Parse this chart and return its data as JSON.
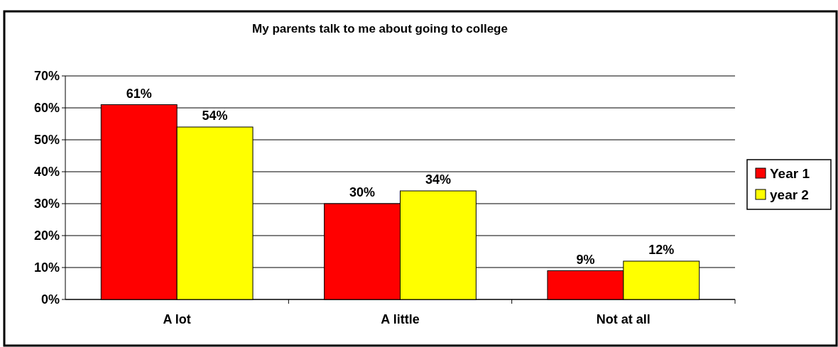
{
  "chart_data": {
    "type": "bar",
    "title": "My parents talk to me about going to college",
    "categories": [
      "A lot",
      "A little",
      "Not at all"
    ],
    "series": [
      {
        "name": "Year 1",
        "color": "#ff0000",
        "values": [
          61,
          30,
          9
        ],
        "value_labels": [
          "61%",
          "30%",
          "9%"
        ]
      },
      {
        "name": "year 2",
        "color": "#ffff00",
        "values": [
          54,
          34,
          12
        ],
        "value_labels": [
          "54%",
          "34%",
          "12%"
        ]
      }
    ],
    "ylim": [
      0,
      70
    ],
    "yticks": [
      {
        "value": 0,
        "label": "0%"
      },
      {
        "value": 10,
        "label": "10%"
      },
      {
        "value": 20,
        "label": "20%"
      },
      {
        "value": 30,
        "label": "30%"
      },
      {
        "value": 40,
        "label": "40%"
      },
      {
        "value": 50,
        "label": "50%"
      },
      {
        "value": 60,
        "label": "60%"
      },
      {
        "value": 70,
        "label": "70%"
      }
    ],
    "grid": "y",
    "legend": "right"
  }
}
